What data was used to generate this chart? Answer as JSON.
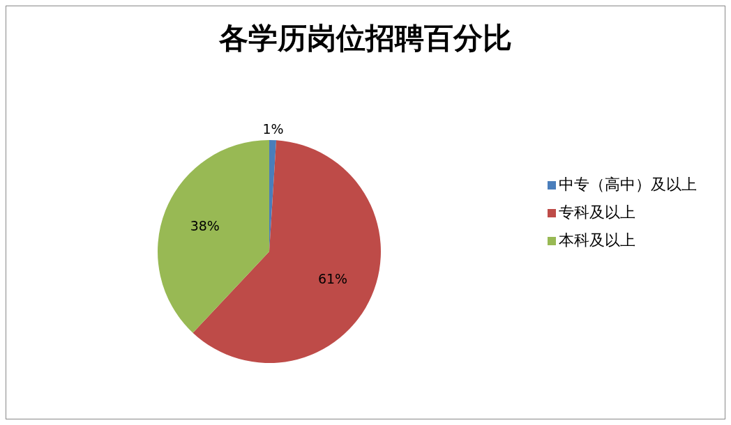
{
  "chart_data": {
    "type": "pie",
    "title": "各学历岗位招聘百分比",
    "categories": [
      "中专（高中）及以上",
      "专科及以上",
      "本科及以上"
    ],
    "values": [
      1,
      61,
      38
    ],
    "value_labels": [
      "1%",
      "61%",
      "38%"
    ],
    "colors": [
      "#4a7ebb",
      "#be4b48",
      "#98b954"
    ],
    "legend": "right"
  }
}
